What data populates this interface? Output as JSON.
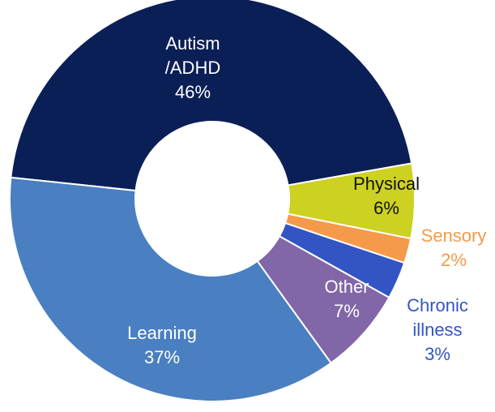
{
  "chart_data": {
    "type": "donut",
    "categories": [
      [
        "Autism",
        "/ADHD"
      ],
      [
        "Physical"
      ],
      [
        "Sensory"
      ],
      [
        "Chronic",
        "illness"
      ],
      [
        "Other"
      ],
      [
        "Learning"
      ]
    ],
    "values": [
      46,
      6,
      2,
      3,
      7,
      37
    ],
    "value_labels": [
      "46%",
      "6%",
      "2%",
      "3%",
      "7%",
      "37%"
    ],
    "colors": [
      "#0b1f57",
      "#cdd122",
      "#f59a4a",
      "#3355c4",
      "#8166a8",
      "#4a7fc1"
    ],
    "label_colors": [
      "#ffffff",
      "#111111",
      "#f59a4a",
      "#3355c4",
      "#ffffff",
      "#ffffff"
    ]
  }
}
